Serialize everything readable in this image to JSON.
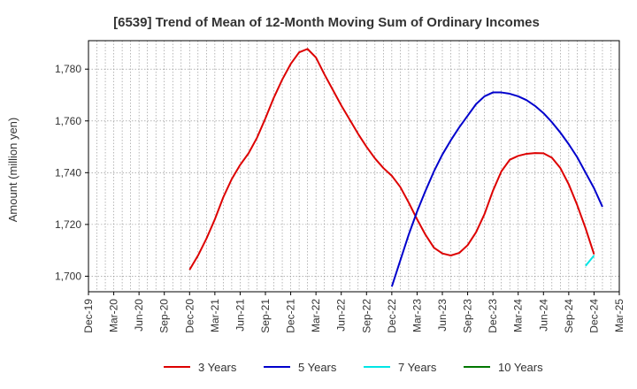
{
  "chart_data": {
    "type": "line",
    "title": "[6539]  Trend of Mean of 12-Month Moving Sum of Ordinary Incomes",
    "ylabel": "Amount (million yen)",
    "xlabel": "",
    "ylim": [
      1694,
      1791
    ],
    "yticks": [
      1700,
      1720,
      1740,
      1760,
      1780
    ],
    "ytick_labels": [
      "1,700",
      "1,720",
      "1,740",
      "1,760",
      "1,780"
    ],
    "x_start": "Dec-19",
    "x_end": "Mar-25",
    "xtick_labels": [
      "Dec-19",
      "Mar-20",
      "Jun-20",
      "Sep-20",
      "Dec-20",
      "Mar-21",
      "Jun-21",
      "Sep-21",
      "Dec-21",
      "Mar-22",
      "Jun-22",
      "Sep-22",
      "Dec-22",
      "Mar-23",
      "Jun-23",
      "Sep-23",
      "Dec-23",
      "Mar-24",
      "Jun-24",
      "Sep-24",
      "Dec-24",
      "Mar-25"
    ],
    "grid": true,
    "legend_position": "bottom-center",
    "series": [
      {
        "name": "3 Years",
        "color": "#dd0000",
        "start_month_index": 12,
        "values": [
          1702.5,
          1708,
          1714.5,
          1722,
          1730.5,
          1737.5,
          1743,
          1747.5,
          1753.5,
          1761,
          1769,
          1776,
          1782,
          1786.5,
          1787.8,
          1784.5,
          1778,
          1772,
          1766,
          1760.5,
          1755,
          1750,
          1745.5,
          1741.8,
          1738.8,
          1734.5,
          1728.5,
          1722,
          1716,
          1711,
          1708.8,
          1708,
          1709,
          1712,
          1717,
          1724,
          1733,
          1740.5,
          1745,
          1746.5,
          1747.3,
          1747.6,
          1747.5,
          1745.8,
          1741.8,
          1735.5,
          1727.5,
          1718.5,
          1708.5
        ]
      },
      {
        "name": "5 Years",
        "color": "#0000cc",
        "start_month_index": 36,
        "values": [
          1696,
          1706,
          1716,
          1725,
          1733,
          1740.5,
          1747,
          1752.5,
          1757.5,
          1762,
          1766.5,
          1769.5,
          1771,
          1771,
          1770.5,
          1769.5,
          1768,
          1765.8,
          1763,
          1759.5,
          1755.5,
          1751,
          1746,
          1740,
          1734,
          1726.8
        ]
      },
      {
        "name": "7 Years",
        "color": "#00e5e5",
        "start_month_index": 59,
        "values": [
          1704,
          1708
        ]
      },
      {
        "name": "10 Years",
        "color": "#007700",
        "start_month_index": 60,
        "values": []
      }
    ]
  }
}
